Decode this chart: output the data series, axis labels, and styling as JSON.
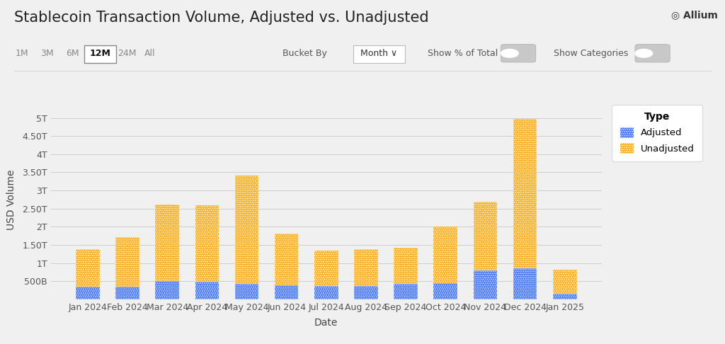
{
  "title": "Stablecoin Transaction Volume, Adjusted vs. Unadjusted",
  "xlabel": "Date",
  "ylabel": "USD Volume",
  "categories": [
    "Jan 2024",
    "Feb 2024",
    "Mar 2024",
    "Apr 2024",
    "May 2024",
    "Jun 2024",
    "Jul 2024",
    "Aug 2024",
    "Sep 2024",
    "Oct 2024",
    "Nov 2024",
    "Dec 2024",
    "Jan 2025"
  ],
  "adjusted": [
    350000000000.0,
    350000000000.0,
    500000000000.0,
    480000000000.0,
    430000000000.0,
    380000000000.0,
    370000000000.0,
    370000000000.0,
    420000000000.0,
    450000000000.0,
    800000000000.0,
    850000000000.0,
    150000000000.0
  ],
  "unadjusted_total": [
    1380000000000.0,
    1720000000000.0,
    2620000000000.0,
    2600000000000.0,
    3420000000000.0,
    1820000000000.0,
    1350000000000.0,
    1380000000000.0,
    1420000000000.0,
    2000000000000.0,
    2680000000000.0,
    4970000000000.0,
    820000000000.0
  ],
  "adjusted_color": "#2962FF",
  "unadjusted_color": "#FFA500",
  "background_color": "#F0F0F0",
  "plot_bg_color": "#F0F0F0",
  "grid_color": "#CCCCCC",
  "legend_title": "Type",
  "legend_labels": [
    "Adjusted",
    "Unadjusted"
  ],
  "bar_width": 0.6,
  "ylim": [
    0,
    5500000000000.0
  ],
  "yticks": [
    0,
    500000000000.0,
    1000000000000.0,
    1500000000000.0,
    2000000000000.0,
    2500000000000.0,
    3000000000000.0,
    3500000000000.0,
    4000000000000.0,
    4500000000000.0,
    5000000000000.0
  ],
  "ytick_labels": [
    "",
    "500B",
    "1T",
    "1.50T",
    "2T",
    "2.50T",
    "3T",
    "3.50T",
    "4T",
    "4.50T",
    "5T"
  ],
  "title_fontsize": 15,
  "axis_label_fontsize": 10,
  "tick_fontsize": 9
}
